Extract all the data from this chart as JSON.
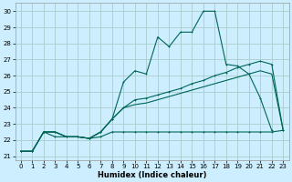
{
  "xlabel": "Humidex (Indice chaleur)",
  "background_color": "#cceeff",
  "grid_color": "#aacccc",
  "line_color": "#006655",
  "xlim": [
    -0.5,
    23.5
  ],
  "ylim": [
    20.75,
    30.5
  ],
  "xticks": [
    0,
    1,
    2,
    3,
    4,
    5,
    6,
    7,
    8,
    9,
    10,
    11,
    12,
    13,
    14,
    15,
    16,
    17,
    18,
    19,
    20,
    21,
    22,
    23
  ],
  "yticks": [
    21,
    22,
    23,
    24,
    25,
    26,
    27,
    28,
    29,
    30
  ],
  "series_spiky_x": [
    0,
    1,
    2,
    3,
    4,
    5,
    6,
    7,
    8,
    9,
    10,
    11,
    12,
    13,
    14,
    15,
    16,
    17,
    18,
    19,
    20,
    21,
    22
  ],
  "series_spiky_y": [
    21.3,
    21.3,
    22.5,
    22.5,
    22.2,
    22.2,
    22.1,
    22.5,
    23.3,
    25.6,
    26.3,
    26.1,
    28.4,
    27.8,
    28.7,
    28.7,
    30.0,
    30.0,
    26.7,
    26.6,
    26.1,
    24.6,
    22.6
  ],
  "series_upper_x": [
    0,
    1,
    2,
    3,
    4,
    5,
    6,
    7,
    8,
    9,
    10,
    11,
    12,
    13,
    14,
    15,
    16,
    17,
    18,
    19,
    20,
    21,
    22,
    23
  ],
  "series_upper_y": [
    21.3,
    21.3,
    22.5,
    22.5,
    22.2,
    22.2,
    22.1,
    22.5,
    23.3,
    24.0,
    24.5,
    24.6,
    24.8,
    25.0,
    25.2,
    25.5,
    25.7,
    26.0,
    26.2,
    26.5,
    26.7,
    26.9,
    26.7,
    22.6
  ],
  "series_lower_x": [
    0,
    1,
    2,
    3,
    4,
    5,
    6,
    7,
    8,
    9,
    10,
    11,
    12,
    13,
    14,
    15,
    16,
    17,
    18,
    19,
    20,
    21,
    22,
    23
  ],
  "series_lower_y": [
    21.3,
    21.3,
    22.5,
    22.5,
    22.2,
    22.2,
    22.1,
    22.5,
    23.3,
    24.0,
    24.2,
    24.3,
    24.5,
    24.7,
    24.9,
    25.1,
    25.3,
    25.5,
    25.7,
    25.9,
    26.1,
    26.3,
    26.1,
    22.6
  ],
  "series_flat_x": [
    0,
    1,
    2,
    3,
    4,
    5,
    6,
    7,
    8,
    9,
    10,
    11,
    12,
    13,
    14,
    15,
    16,
    17,
    18,
    19,
    20,
    21,
    22,
    23
  ],
  "series_flat_y": [
    21.3,
    21.3,
    22.5,
    22.2,
    22.2,
    22.2,
    22.1,
    22.2,
    22.5,
    22.5,
    22.5,
    22.5,
    22.5,
    22.5,
    22.5,
    22.5,
    22.5,
    22.5,
    22.5,
    22.5,
    22.5,
    22.5,
    22.5,
    22.6
  ]
}
